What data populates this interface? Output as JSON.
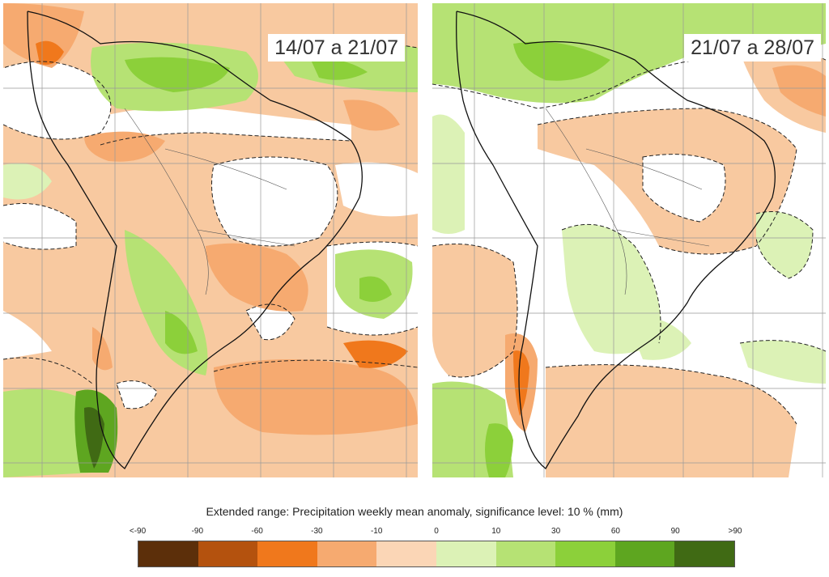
{
  "panels": [
    {
      "period": "14/07 a 21/07"
    },
    {
      "period": "21/07 a 28/07"
    }
  ],
  "legend": {
    "title": "Extended range: Precipitation weekly mean anomaly, significance level: 10 % (mm)",
    "ticks": [
      "<-90",
      "-90",
      "-60",
      "-30",
      "-10",
      "0",
      "10",
      "30",
      "60",
      "90",
      ">90"
    ],
    "colors": [
      "#5c2f0a",
      "#b4520e",
      "#f0781c",
      "#f6aa70",
      "#fbd6b6",
      "#dcf2b6",
      "#b6e274",
      "#8cd03a",
      "#5ea620",
      "#406a14"
    ]
  }
}
